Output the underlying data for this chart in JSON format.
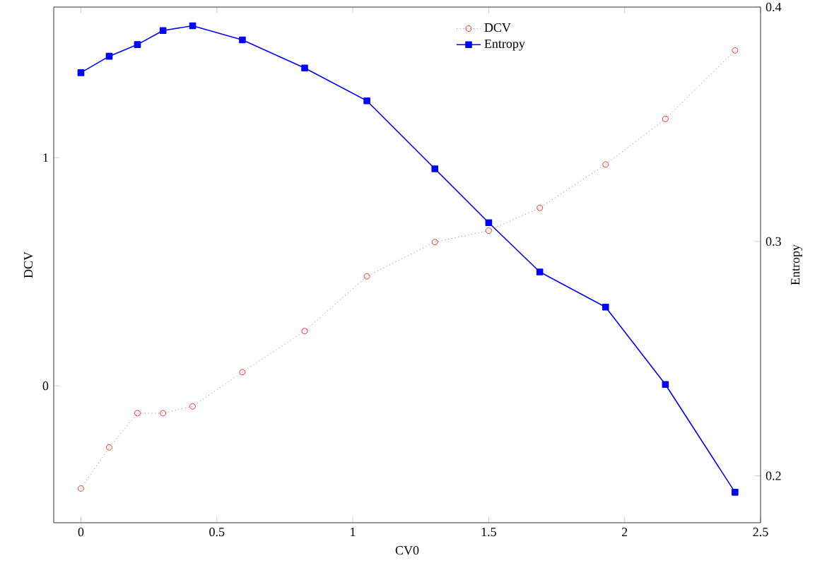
{
  "chart_data": {
    "type": "line",
    "xlabel": "CV0",
    "ylabel": "DCV",
    "y2label": "Entropy",
    "x": [
      0,
      0.104,
      0.208,
      0.302,
      0.411,
      0.594,
      0.823,
      1.052,
      1.302,
      1.5,
      1.688,
      1.93,
      2.15,
      2.406
    ],
    "series": [
      {
        "name": "DCV",
        "color": "#ff0000",
        "marker": "circle",
        "line_style": "dotted",
        "values": [
          -0.45,
          -0.27,
          -0.12,
          -0.12,
          -0.09,
          0.06,
          0.24,
          0.48,
          0.63,
          0.68,
          0.78,
          0.97,
          1.17,
          1.47
        ]
      },
      {
        "name": "Entropy",
        "color": "#0000ff",
        "marker": "square",
        "line_style": "solid",
        "axis": "y2",
        "values": [
          0.372,
          0.379,
          0.384,
          0.39,
          0.392,
          0.386,
          0.374,
          0.36,
          0.331,
          0.308,
          0.287,
          0.272,
          0.239,
          0.193
        ]
      }
    ],
    "xlim": [
      -0.1,
      2.5
    ],
    "xticks": [
      0,
      0.5,
      1,
      1.5,
      2,
      2.5
    ],
    "ylim": [
      -0.6,
      1.66
    ],
    "yticks": [
      0,
      1
    ],
    "y2lim": [
      0.18,
      0.4
    ],
    "y2ticks": [
      0.2,
      0.3,
      0.4
    ],
    "legend": "top",
    "grid": false
  }
}
